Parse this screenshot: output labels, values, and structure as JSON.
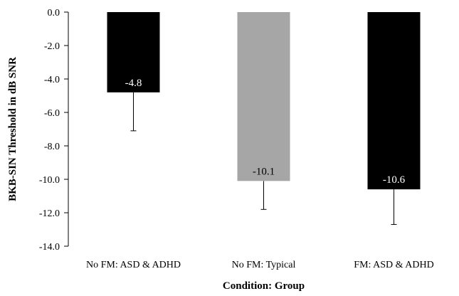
{
  "chart_data": {
    "type": "bar",
    "categories": [
      "No FM: ASD & ADHD",
      "No FM: Typical",
      "FM: ASD & ADHD"
    ],
    "values": [
      -4.8,
      -10.1,
      -10.6
    ],
    "value_labels": [
      "-4.8",
      "-10.1",
      "-10.6"
    ],
    "error_bar_extents": [
      -7.1,
      -11.8,
      -12.7
    ],
    "bar_colors": [
      "#000000",
      "#a6a6a6",
      "#000000"
    ],
    "value_label_colors": [
      "#ffffff",
      "#000000",
      "#ffffff"
    ],
    "xlabel": "Condition: Group",
    "ylabel": "BKB-SIN Threshold in dB SNR",
    "ylim": [
      -14.0,
      0.0
    ],
    "yticks": [
      0.0,
      -2.0,
      -4.0,
      -6.0,
      -8.0,
      -10.0,
      -12.0,
      -14.0
    ],
    "ytick_labels": [
      "0.0",
      "-2.0",
      "-4.0",
      "-6.0",
      "-8.0",
      "-10.0",
      "-12.0",
      "-14.0"
    ],
    "grid": false,
    "legend": "none"
  }
}
